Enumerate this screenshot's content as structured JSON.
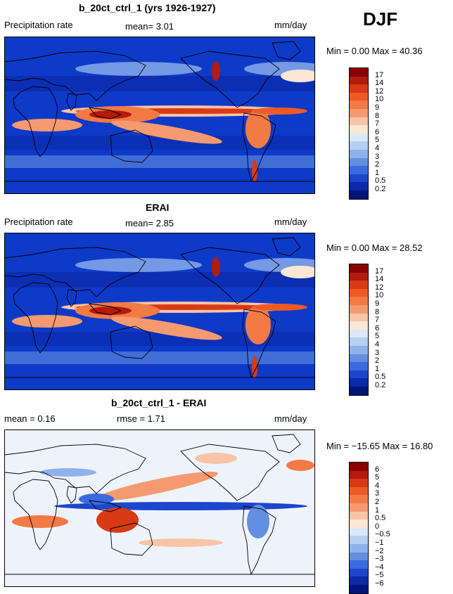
{
  "season": "DJF",
  "panels": [
    {
      "title": "b_20ct_ctrl_1 (yrs 1926-1927)",
      "left_label": "Precipitation rate",
      "center_label": "mean=    3.01",
      "units": "mm/day",
      "minmax": "Min =     0.00  Max =   40.36",
      "colorbar_labels": [
        "17",
        "14",
        "12",
        "10",
        "9",
        "8",
        "7",
        "6",
        "5",
        "4",
        "3",
        "2",
        "1",
        "0.5",
        "0.2"
      ],
      "colors": [
        "#8b0000",
        "#b31b0c",
        "#d83a15",
        "#ee5a24",
        "#f27a45",
        "#f59a70",
        "#f8c4a6",
        "#fce6d4",
        "#dbe8f8",
        "#b6cff2",
        "#8eb2ec",
        "#628fe0",
        "#3b6ae0",
        "#1c46cc",
        "#0a2aaa",
        "#00147a"
      ],
      "kind": "precip"
    },
    {
      "title": "ERAI",
      "left_label": "Precipitation rate",
      "center_label": "mean=    2.85",
      "units": "mm/day",
      "minmax": "Min =     0.00  Max =   28.52",
      "colorbar_labels": [
        "17",
        "14",
        "12",
        "10",
        "9",
        "8",
        "7",
        "6",
        "5",
        "4",
        "3",
        "2",
        "1",
        "0.5",
        "0.2"
      ],
      "colors": [
        "#8b0000",
        "#b31b0c",
        "#d83a15",
        "#ee5a24",
        "#f27a45",
        "#f59a70",
        "#f8c4a6",
        "#fce6d4",
        "#dbe8f8",
        "#b6cff2",
        "#8eb2ec",
        "#628fe0",
        "#3b6ae0",
        "#1c46cc",
        "#0a2aaa",
        "#00147a"
      ],
      "kind": "precip"
    },
    {
      "title": "b_20ct_ctrl_1 - ERAI",
      "left_label": "mean =   0.16",
      "center_label": "rmse =    1.71",
      "units": "mm/day",
      "minmax": "Min = −15.65  Max =   16.80",
      "colorbar_labels": [
        "6",
        "5",
        "4",
        "3",
        "2",
        "1",
        "0.5",
        "0",
        "−0.5",
        "−1",
        "−2",
        "−3",
        "−4",
        "−5",
        "−6"
      ],
      "colors": [
        "#8b0000",
        "#b31b0c",
        "#d83a15",
        "#ee5a24",
        "#f27a45",
        "#f59a70",
        "#f8c4a6",
        "#fce6d4",
        "#dbe8f8",
        "#b6cff2",
        "#8eb2ec",
        "#628fe0",
        "#3b6ae0",
        "#1c46cc",
        "#0a2aaa",
        "#00147a"
      ],
      "kind": "diff"
    }
  ],
  "chart_data": [
    {
      "type": "heatmap",
      "title": "b_20ct_ctrl_1 (yrs 1926-1927)",
      "variable": "Precipitation rate",
      "units": "mm/day",
      "mean": 3.01,
      "min": 0.0,
      "max": 40.36,
      "levels": [
        0.2,
        0.5,
        1,
        2,
        3,
        4,
        5,
        6,
        7,
        8,
        9,
        10,
        12,
        14,
        17
      ]
    },
    {
      "type": "heatmap",
      "title": "ERAI",
      "variable": "Precipitation rate",
      "units": "mm/day",
      "mean": 2.85,
      "min": 0.0,
      "max": 28.52,
      "levels": [
        0.2,
        0.5,
        1,
        2,
        3,
        4,
        5,
        6,
        7,
        8,
        9,
        10,
        12,
        14,
        17
      ]
    },
    {
      "type": "heatmap",
      "title": "b_20ct_ctrl_1 - ERAI",
      "units": "mm/day",
      "mean": 0.16,
      "rmse": 1.71,
      "min": -15.65,
      "max": 16.8,
      "levels": [
        -6,
        -5,
        -4,
        -3,
        -2,
        -1,
        -0.5,
        0,
        0.5,
        1,
        2,
        3,
        4,
        5,
        6
      ]
    }
  ]
}
